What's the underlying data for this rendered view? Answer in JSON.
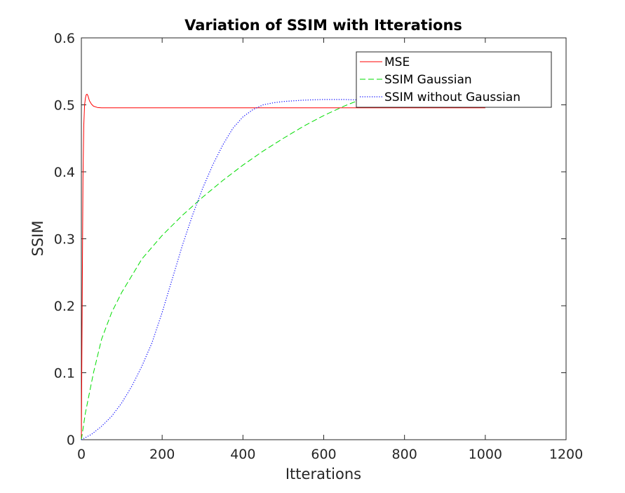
{
  "chart_data": {
    "type": "line",
    "title": "Variation of SSIM with Itterations",
    "xlabel": "Itterations",
    "ylabel": "SSIM",
    "xlim": [
      0,
      1200
    ],
    "ylim": [
      0,
      0.6
    ],
    "xticks": [
      0,
      200,
      400,
      600,
      800,
      1000,
      1200
    ],
    "xtick_labels": [
      "0",
      "200",
      "400",
      "600",
      "800",
      "1000",
      "1200"
    ],
    "yticks": [
      0,
      0.1,
      0.2,
      0.3,
      0.4,
      0.5,
      0.6
    ],
    "ytick_labels": [
      "0",
      "0.1",
      "0.2",
      "0.3",
      "0.4",
      "0.5",
      "0.6"
    ],
    "grid": false,
    "legend_position": "top-right",
    "series": [
      {
        "name": "MSE",
        "color": "#ff0000",
        "line_style": "solid",
        "x": [
          0,
          2,
          4,
          6,
          8,
          10,
          12,
          14,
          16,
          18,
          20,
          25,
          30,
          40,
          50,
          60,
          80,
          100,
          200,
          400,
          600,
          800,
          1000
        ],
        "y": [
          0,
          0.2,
          0.39,
          0.47,
          0.5,
          0.51,
          0.515,
          0.516,
          0.514,
          0.51,
          0.506,
          0.501,
          0.498,
          0.496,
          0.4955,
          0.4955,
          0.4955,
          0.4955,
          0.4955,
          0.4955,
          0.4955,
          0.4955,
          0.4955
        ]
      },
      {
        "name": "SSIM Gaussian",
        "color": "#00dd00",
        "line_style": "dashed",
        "x": [
          0,
          10,
          20,
          30,
          50,
          75,
          100,
          150,
          200,
          250,
          300,
          350,
          400,
          450,
          500,
          550,
          600,
          650,
          700,
          750,
          800,
          850,
          900,
          950,
          1000
        ],
        "y": [
          0,
          0.04,
          0.07,
          0.1,
          0.15,
          0.19,
          0.22,
          0.27,
          0.305,
          0.335,
          0.362,
          0.387,
          0.41,
          0.431,
          0.45,
          0.468,
          0.484,
          0.498,
          0.51,
          0.52,
          0.528,
          0.532,
          0.535,
          0.538,
          0.54
        ]
      },
      {
        "name": "SSIM without Gaussian",
        "color": "#0000ff",
        "line_style": "dotted",
        "x": [
          0,
          25,
          50,
          75,
          100,
          125,
          150,
          175,
          200,
          225,
          250,
          275,
          300,
          325,
          350,
          375,
          400,
          425,
          450,
          475,
          500,
          550,
          600,
          650,
          700,
          750,
          800,
          900,
          1000
        ],
        "y": [
          0,
          0.008,
          0.02,
          0.035,
          0.055,
          0.08,
          0.11,
          0.145,
          0.19,
          0.24,
          0.29,
          0.335,
          0.375,
          0.41,
          0.44,
          0.465,
          0.482,
          0.493,
          0.5,
          0.503,
          0.505,
          0.507,
          0.508,
          0.508,
          0.507,
          0.506,
          0.505,
          0.503,
          0.502
        ]
      }
    ]
  }
}
